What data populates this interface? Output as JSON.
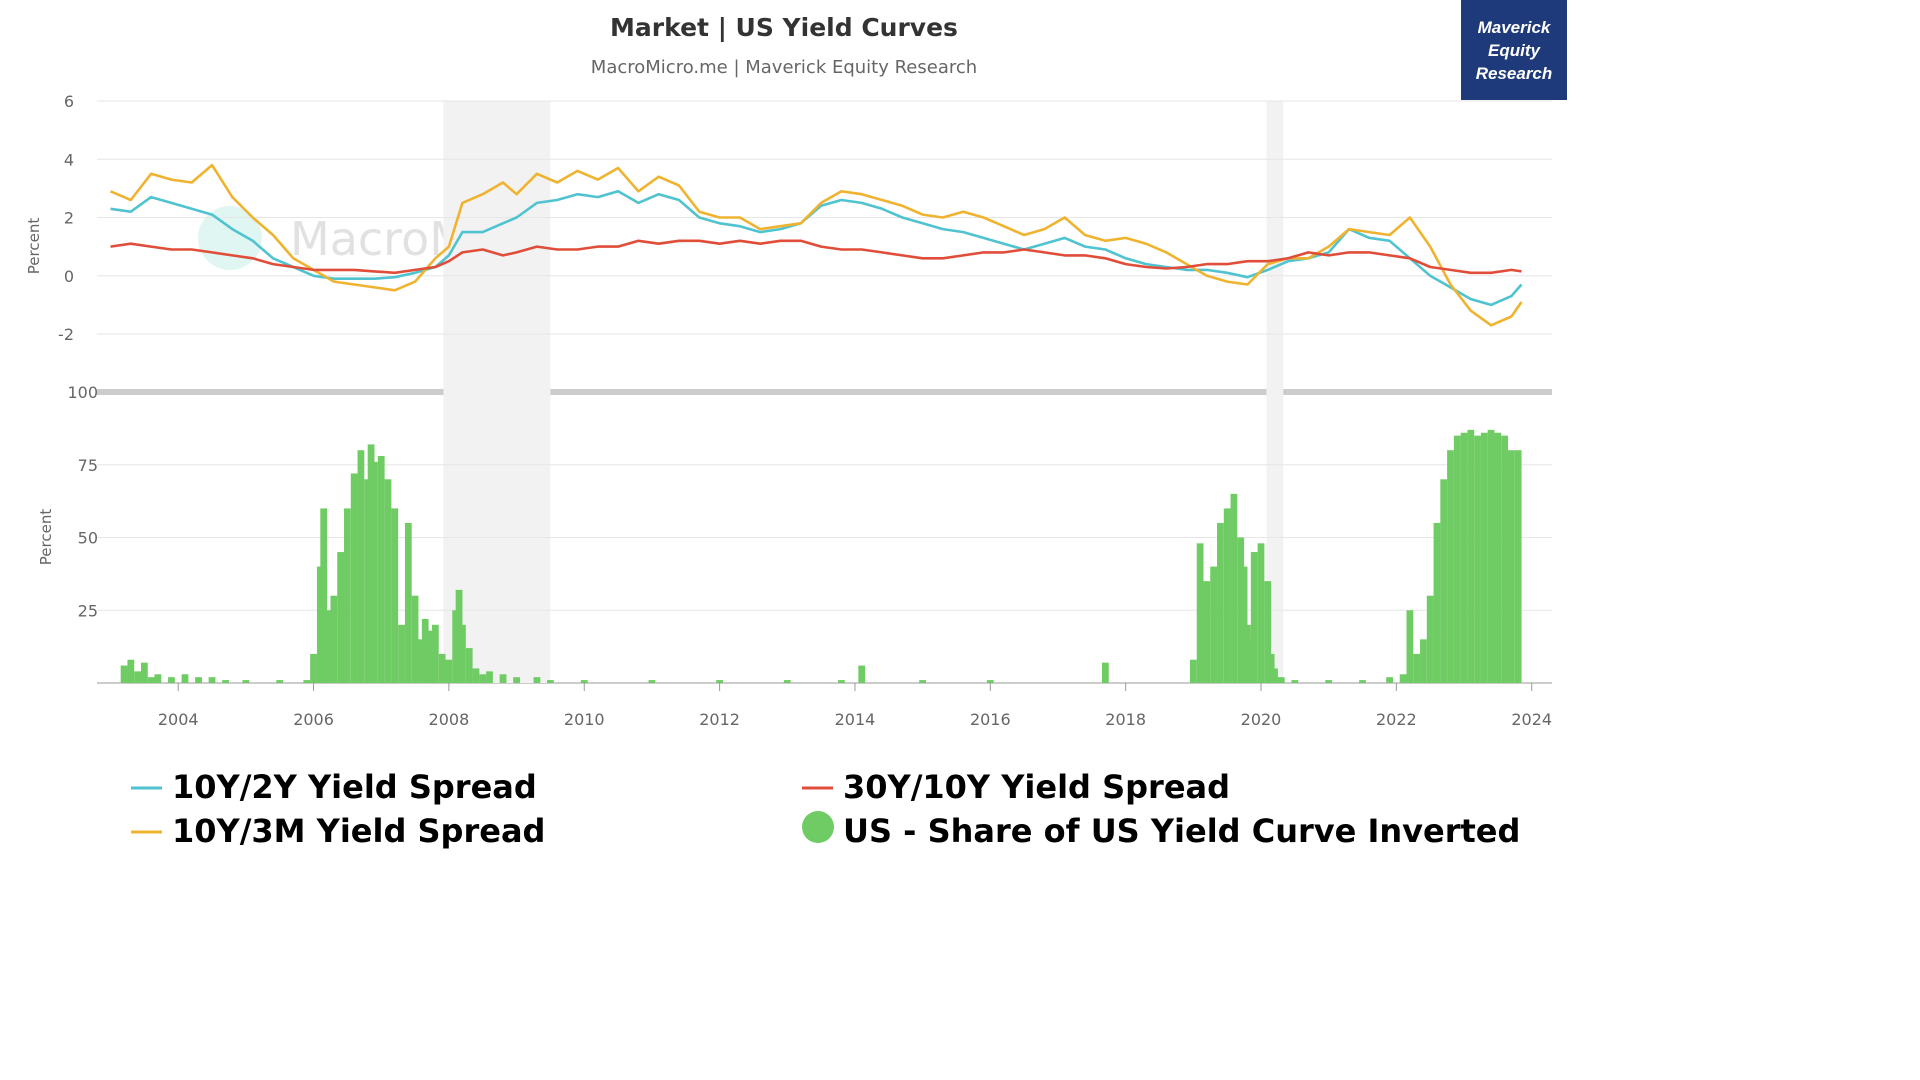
{
  "header": {
    "title": "Market | US Yield Curves",
    "subtitle": "MacroMicro.me | Maverick Equity Research",
    "brand_lines": [
      "Maverick",
      "Equity",
      "Research"
    ],
    "watermark": "MacroMicro"
  },
  "colors": {
    "spread_10y2y": "#4fc3cf",
    "spread_10y3m": "#f0b330",
    "spread_30y10y": "#e04e39",
    "inverted_share": "#6fcb63",
    "recession_band": "#f2f2f2",
    "brand_box": "#1f3a7a"
  },
  "legend": [
    {
      "label": "10Y/2Y Yield Spread",
      "color": "#4fc3cf",
      "marker": "line"
    },
    {
      "label": "30Y/10Y Yield Spread",
      "color": "#e04e39",
      "marker": "line"
    },
    {
      "label": "10Y/3M Yield Spread",
      "color": "#f0b330",
      "marker": "line"
    },
    {
      "label": "US - Share of US Yield Curve Inverted",
      "color": "#6fcb63",
      "marker": "circle"
    }
  ],
  "chart_data": [
    {
      "type": "line",
      "ylabel": "Percent",
      "ylim": [
        -2,
        6
      ],
      "yticks": [
        "6",
        "4",
        "2",
        "0",
        "-2"
      ],
      "xlim": [
        2002.8,
        2024.3
      ],
      "xticks": [
        "2004",
        "2006",
        "2008",
        "2010",
        "2012",
        "2014",
        "2016",
        "2018",
        "2020",
        "2022",
        "2024"
      ],
      "recessions": [
        [
          2007.92,
          2009.5
        ],
        [
          2020.08,
          2020.33
        ]
      ],
      "grid": true,
      "series": [
        {
          "name": "10Y/2Y Yield Spread",
          "x": [
            2003.0,
            2003.3,
            2003.6,
            2003.9,
            2004.2,
            2004.5,
            2004.8,
            2005.1,
            2005.4,
            2005.7,
            2006.0,
            2006.3,
            2006.6,
            2006.9,
            2007.2,
            2007.5,
            2007.8,
            2008.0,
            2008.2,
            2008.5,
            2008.8,
            2009.0,
            2009.3,
            2009.6,
            2009.9,
            2010.2,
            2010.5,
            2010.8,
            2011.1,
            2011.4,
            2011.7,
            2012.0,
            2012.3,
            2012.6,
            2012.9,
            2013.2,
            2013.5,
            2013.8,
            2014.1,
            2014.4,
            2014.7,
            2015.0,
            2015.3,
            2015.6,
            2015.9,
            2016.2,
            2016.5,
            2016.8,
            2017.1,
            2017.4,
            2017.7,
            2018.0,
            2018.3,
            2018.6,
            2018.9,
            2019.2,
            2019.5,
            2019.8,
            2020.1,
            2020.4,
            2020.7,
            2021.0,
            2021.3,
            2021.6,
            2021.9,
            2022.2,
            2022.5,
            2022.8,
            2023.1,
            2023.4,
            2023.7,
            2023.85
          ],
          "values": [
            2.3,
            2.2,
            2.7,
            2.5,
            2.3,
            2.1,
            1.6,
            1.2,
            0.6,
            0.3,
            0.0,
            -0.1,
            -0.1,
            -0.1,
            -0.05,
            0.1,
            0.3,
            0.7,
            1.5,
            1.5,
            1.8,
            2.0,
            2.5,
            2.6,
            2.8,
            2.7,
            2.9,
            2.5,
            2.8,
            2.6,
            2.0,
            1.8,
            1.7,
            1.5,
            1.6,
            1.8,
            2.4,
            2.6,
            2.5,
            2.3,
            2.0,
            1.8,
            1.6,
            1.5,
            1.3,
            1.1,
            0.9,
            1.1,
            1.3,
            1.0,
            0.9,
            0.6,
            0.4,
            0.3,
            0.2,
            0.2,
            0.1,
            -0.05,
            0.2,
            0.5,
            0.6,
            0.8,
            1.6,
            1.3,
            1.2,
            0.6,
            0.0,
            -0.4,
            -0.8,
            -1.0,
            -0.7,
            -0.3
          ]
        },
        {
          "name": "10Y/3M Yield Spread",
          "x": [
            2003.0,
            2003.3,
            2003.6,
            2003.9,
            2004.2,
            2004.5,
            2004.8,
            2005.1,
            2005.4,
            2005.7,
            2006.0,
            2006.3,
            2006.6,
            2006.9,
            2007.2,
            2007.5,
            2007.8,
            2008.0,
            2008.2,
            2008.5,
            2008.8,
            2009.0,
            2009.3,
            2009.6,
            2009.9,
            2010.2,
            2010.5,
            2010.8,
            2011.1,
            2011.4,
            2011.7,
            2012.0,
            2012.3,
            2012.6,
            2012.9,
            2013.2,
            2013.5,
            2013.8,
            2014.1,
            2014.4,
            2014.7,
            2015.0,
            2015.3,
            2015.6,
            2015.9,
            2016.2,
            2016.5,
            2016.8,
            2017.1,
            2017.4,
            2017.7,
            2018.0,
            2018.3,
            2018.6,
            2018.9,
            2019.2,
            2019.5,
            2019.8,
            2020.1,
            2020.4,
            2020.7,
            2021.0,
            2021.3,
            2021.6,
            2021.9,
            2022.2,
            2022.5,
            2022.8,
            2023.1,
            2023.4,
            2023.7,
            2023.85
          ],
          "values": [
            2.9,
            2.6,
            3.5,
            3.3,
            3.2,
            3.8,
            2.7,
            2.0,
            1.4,
            0.6,
            0.2,
            -0.2,
            -0.3,
            -0.4,
            -0.5,
            -0.2,
            0.6,
            1.0,
            2.5,
            2.8,
            3.2,
            2.8,
            3.5,
            3.2,
            3.6,
            3.3,
            3.7,
            2.9,
            3.4,
            3.1,
            2.2,
            2.0,
            2.0,
            1.6,
            1.7,
            1.8,
            2.5,
            2.9,
            2.8,
            2.6,
            2.4,
            2.1,
            2.0,
            2.2,
            2.0,
            1.7,
            1.4,
            1.6,
            2.0,
            1.4,
            1.2,
            1.3,
            1.1,
            0.8,
            0.4,
            0.0,
            -0.2,
            -0.3,
            0.4,
            0.6,
            0.6,
            1.0,
            1.6,
            1.5,
            1.4,
            2.0,
            1.0,
            -0.3,
            -1.2,
            -1.7,
            -1.4,
            -0.9
          ]
        },
        {
          "name": "30Y/10Y Yield Spread",
          "x": [
            2003.0,
            2003.3,
            2003.6,
            2003.9,
            2004.2,
            2004.5,
            2004.8,
            2005.1,
            2005.4,
            2005.7,
            2006.0,
            2006.3,
            2006.6,
            2006.9,
            2007.2,
            2007.5,
            2007.8,
            2008.0,
            2008.2,
            2008.5,
            2008.8,
            2009.0,
            2009.3,
            2009.6,
            2009.9,
            2010.2,
            2010.5,
            2010.8,
            2011.1,
            2011.4,
            2011.7,
            2012.0,
            2012.3,
            2012.6,
            2012.9,
            2013.2,
            2013.5,
            2013.8,
            2014.1,
            2014.4,
            2014.7,
            2015.0,
            2015.3,
            2015.6,
            2015.9,
            2016.2,
            2016.5,
            2016.8,
            2017.1,
            2017.4,
            2017.7,
            2018.0,
            2018.3,
            2018.6,
            2018.9,
            2019.2,
            2019.5,
            2019.8,
            2020.1,
            2020.4,
            2020.7,
            2021.0,
            2021.3,
            2021.6,
            2021.9,
            2022.2,
            2022.5,
            2022.8,
            2023.1,
            2023.4,
            2023.7,
            2023.85
          ],
          "values": [
            1.0,
            1.1,
            1.0,
            0.9,
            0.9,
            0.8,
            0.7,
            0.6,
            0.4,
            0.3,
            0.2,
            0.2,
            0.2,
            0.15,
            0.1,
            0.2,
            0.3,
            0.5,
            0.8,
            0.9,
            0.7,
            0.8,
            1.0,
            0.9,
            0.9,
            1.0,
            1.0,
            1.2,
            1.1,
            1.2,
            1.2,
            1.1,
            1.2,
            1.1,
            1.2,
            1.2,
            1.0,
            0.9,
            0.9,
            0.8,
            0.7,
            0.6,
            0.6,
            0.7,
            0.8,
            0.8,
            0.9,
            0.8,
            0.7,
            0.7,
            0.6,
            0.4,
            0.3,
            0.25,
            0.3,
            0.4,
            0.4,
            0.5,
            0.5,
            0.6,
            0.8,
            0.7,
            0.8,
            0.8,
            0.7,
            0.6,
            0.3,
            0.2,
            0.1,
            0.1,
            0.2,
            0.15
          ]
        }
      ]
    },
    {
      "type": "bar",
      "ylabel": "Percent",
      "ylim": [
        0,
        100
      ],
      "yticks": [
        "100",
        "75",
        "50",
        "25"
      ],
      "xlim": [
        2002.8,
        2024.3
      ],
      "grid": true,
      "series": [
        {
          "name": "US - Share of US Yield Curve Inverted",
          "x": [
            2003.2,
            2003.3,
            2003.4,
            2003.5,
            2003.6,
            2003.7,
            2003.9,
            2004.1,
            2004.3,
            2004.5,
            2004.7,
            2005.0,
            2005.5,
            2005.9,
            2006.0,
            2006.1,
            2006.15,
            2006.2,
            2006.3,
            2006.4,
            2006.5,
            2006.6,
            2006.7,
            2006.8,
            2006.85,
            2006.9,
            2007.0,
            2007.1,
            2007.2,
            2007.3,
            2007.4,
            2007.5,
            2007.6,
            2007.65,
            2007.7,
            2007.75,
            2007.8,
            2007.9,
            2008.0,
            2008.1,
            2008.15,
            2008.2,
            2008.3,
            2008.4,
            2008.5,
            2008.6,
            2008.8,
            2009.0,
            2009.3,
            2009.5,
            2010.0,
            2011.0,
            2012.0,
            2013.0,
            2013.8,
            2014.1,
            2015.0,
            2016.0,
            2017.7,
            2019.0,
            2019.1,
            2019.2,
            2019.3,
            2019.4,
            2019.5,
            2019.6,
            2019.7,
            2019.75,
            2019.8,
            2019.85,
            2019.9,
            2020.0,
            2020.1,
            2020.15,
            2020.2,
            2020.3,
            2020.5,
            2021.0,
            2021.5,
            2021.9,
            2022.1,
            2022.2,
            2022.3,
            2022.4,
            2022.5,
            2022.6,
            2022.7,
            2022.8,
            2022.9,
            2023.0,
            2023.1,
            2023.2,
            2023.3,
            2023.4,
            2023.5,
            2023.6,
            2023.7,
            2023.8
          ],
          "values": [
            6,
            8,
            4,
            7,
            2,
            3,
            2,
            3,
            2,
            2,
            1,
            1,
            1,
            1,
            10,
            40,
            60,
            25,
            30,
            45,
            60,
            72,
            80,
            70,
            82,
            76,
            78,
            70,
            60,
            20,
            55,
            30,
            15,
            22,
            18,
            12,
            20,
            10,
            8,
            25,
            32,
            20,
            12,
            5,
            3,
            4,
            3,
            2,
            2,
            1,
            1,
            1,
            1,
            1,
            1,
            6,
            1,
            1,
            7,
            8,
            48,
            35,
            40,
            55,
            60,
            65,
            50,
            40,
            20,
            15,
            45,
            48,
            35,
            10,
            5,
            2,
            1,
            1,
            1,
            2,
            3,
            25,
            10,
            15,
            30,
            55,
            70,
            80,
            85,
            86,
            87,
            85,
            86,
            87,
            86,
            85,
            80,
            80
          ]
        }
      ]
    }
  ]
}
